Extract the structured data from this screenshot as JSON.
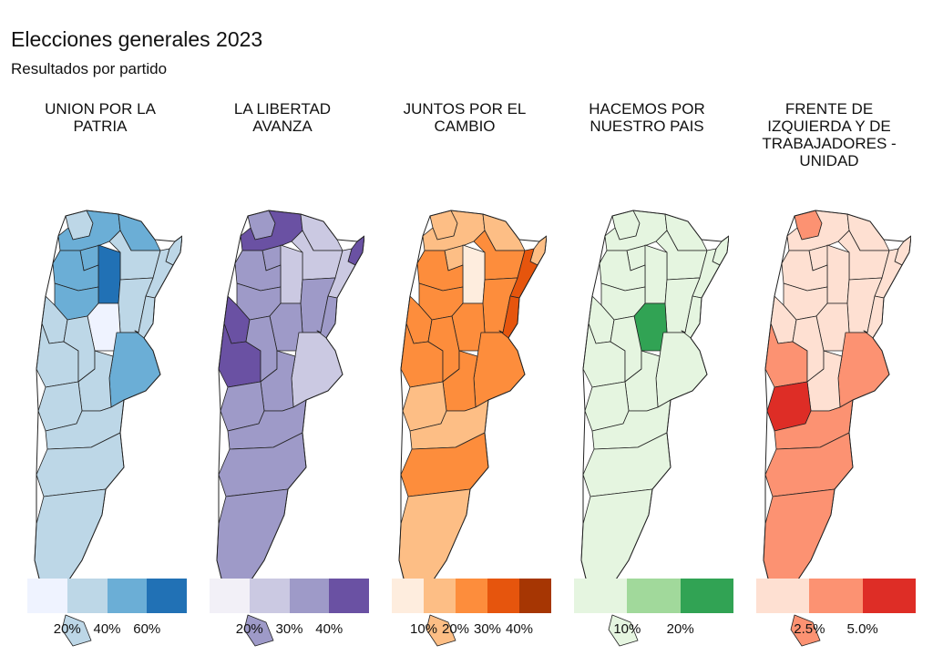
{
  "title": "Elecciones generales 2023",
  "subtitle": "Resultados por partido",
  "panels": [
    {
      "party": "UNION POR LA PATRIA",
      "title_lines": [
        "UNION POR LA",
        "PATRIA"
      ],
      "legend_colors": [
        "#eff3ff",
        "#bdd7e7",
        "#6baed6",
        "#2171b5"
      ],
      "tick_labels": [
        "20%",
        "40%",
        "60%"
      ],
      "colors": {
        "jujuy": "#bdd7e7",
        "salta": "#6baed6",
        "formosa": "#6baed6",
        "chaco": "#bdd7e7",
        "misiones": "#bdd7e7",
        "corrientes": "#bdd7e7",
        "tucuman": "#6baed6",
        "sgo_estero": "#2171b5",
        "catamarca": "#6baed6",
        "la_rioja": "#6baed6",
        "santa_fe": "#bdd7e7",
        "entre_rios": "#bdd7e7",
        "san_juan": "#bdd7e7",
        "cordoba": "#eff3ff",
        "mendoza": "#bdd7e7",
        "san_luis": "#bdd7e7",
        "buenos_aires": "#6baed6",
        "la_pampa": "#bdd7e7",
        "neuquen": "#bdd7e7",
        "rio_negro": "#bdd7e7",
        "chubut": "#bdd7e7",
        "santa_cruz": "#bdd7e7",
        "tierra_del_fuego": "#bdd7e7",
        "malvinas": "#bdd7e7"
      }
    },
    {
      "party": "LA LIBERTAD AVANZA",
      "title_lines": [
        "LA LIBERTAD",
        "AVANZA"
      ],
      "legend_colors": [
        "#f2f0f7",
        "#cbc9e2",
        "#9e9ac8",
        "#6a51a3"
      ],
      "tick_labels": [
        "20%",
        "30%",
        "40%"
      ],
      "colors": {
        "jujuy": "#9e9ac8",
        "salta": "#6a51a3",
        "formosa": "#cbc9e2",
        "chaco": "#cbc9e2",
        "misiones": "#6a51a3",
        "corrientes": "#cbc9e2",
        "tucuman": "#9e9ac8",
        "sgo_estero": "#cbc9e2",
        "catamarca": "#9e9ac8",
        "la_rioja": "#9e9ac8",
        "santa_fe": "#9e9ac8",
        "entre_rios": "#9e9ac8",
        "san_juan": "#6a51a3",
        "cordoba": "#9e9ac8",
        "mendoza": "#6a51a3",
        "san_luis": "#9e9ac8",
        "buenos_aires": "#cbc9e2",
        "la_pampa": "#9e9ac8",
        "neuquen": "#9e9ac8",
        "rio_negro": "#9e9ac8",
        "chubut": "#9e9ac8",
        "santa_cruz": "#9e9ac8",
        "tierra_del_fuego": "#9e9ac8",
        "malvinas": "#9e9ac8"
      }
    },
    {
      "party": "JUNTOS POR EL CAMBIO",
      "title_lines": [
        "JUNTOS POR EL",
        "CAMBIO"
      ],
      "legend_colors": [
        "#feedde",
        "#fdbe85",
        "#fd8d3c",
        "#e6550d",
        "#a63603"
      ],
      "tick_labels": [
        "10%",
        "20%",
        "30%",
        "40%"
      ],
      "colors": {
        "jujuy": "#fdbe85",
        "salta": "#fdbe85",
        "formosa": "#fdbe85",
        "chaco": "#fd8d3c",
        "misiones": "#fdbe85",
        "corrientes": "#e6550d",
        "tucuman": "#fdbe85",
        "sgo_estero": "#feedde",
        "catamarca": "#fd8d3c",
        "la_rioja": "#fd8d3c",
        "santa_fe": "#fd8d3c",
        "entre_rios": "#e6550d",
        "san_juan": "#fd8d3c",
        "cordoba": "#fd8d3c",
        "mendoza": "#fd8d3c",
        "san_luis": "#fd8d3c",
        "buenos_aires": "#fd8d3c",
        "la_pampa": "#fd8d3c",
        "neuquen": "#fdbe85",
        "rio_negro": "#fdbe85",
        "chubut": "#fd8d3c",
        "santa_cruz": "#fdbe85",
        "tierra_del_fuego": "#fdbe85",
        "malvinas": "#fdbe85"
      }
    },
    {
      "party": "HACEMOS POR NUESTRO PAIS",
      "title_lines": [
        "HACEMOS POR",
        "NUESTRO PAIS"
      ],
      "legend_colors": [
        "#e5f5e0",
        "#a1d99b",
        "#31a354"
      ],
      "tick_labels": [
        "10%",
        "20%"
      ],
      "colors": {
        "jujuy": "#e5f5e0",
        "salta": "#e5f5e0",
        "formosa": "#e5f5e0",
        "chaco": "#e5f5e0",
        "misiones": "#e5f5e0",
        "corrientes": "#e5f5e0",
        "tucuman": "#e5f5e0",
        "sgo_estero": "#e5f5e0",
        "catamarca": "#e5f5e0",
        "la_rioja": "#e5f5e0",
        "santa_fe": "#e5f5e0",
        "entre_rios": "#e5f5e0",
        "san_juan": "#e5f5e0",
        "cordoba": "#31a354",
        "mendoza": "#e5f5e0",
        "san_luis": "#e5f5e0",
        "buenos_aires": "#e5f5e0",
        "la_pampa": "#e5f5e0",
        "neuquen": "#e5f5e0",
        "rio_negro": "#e5f5e0",
        "chubut": "#e5f5e0",
        "santa_cruz": "#e5f5e0",
        "tierra_del_fuego": "#e5f5e0",
        "malvinas": "#e5f5e0"
      }
    },
    {
      "party": "FRENTE DE IZQUIERDA Y DE TRABAJADORES - UNIDAD",
      "title_lines": [
        "FRENTE DE",
        "IZQUIERDA Y DE",
        "TRABAJADORES -",
        "UNIDAD"
      ],
      "legend_colors": [
        "#fee0d2",
        "#fc9272",
        "#de2d26"
      ],
      "tick_labels": [
        "2.5%",
        "5.0%"
      ],
      "colors": {
        "jujuy": "#fc9272",
        "salta": "#fee0d2",
        "formosa": "#fee0d2",
        "chaco": "#fee0d2",
        "misiones": "#fee0d2",
        "corrientes": "#fee0d2",
        "tucuman": "#fee0d2",
        "sgo_estero": "#fee0d2",
        "catamarca": "#fee0d2",
        "la_rioja": "#fee0d2",
        "santa_fe": "#fee0d2",
        "entre_rios": "#fee0d2",
        "san_juan": "#fee0d2",
        "cordoba": "#fee0d2",
        "mendoza": "#fc9272",
        "san_luis": "#fee0d2",
        "buenos_aires": "#fc9272",
        "la_pampa": "#fee0d2",
        "neuquen": "#de2d26",
        "rio_negro": "#fc9272",
        "chubut": "#fc9272",
        "santa_cruz": "#fc9272",
        "tierra_del_fuego": "#fc9272",
        "malvinas": "#fc9272"
      }
    }
  ]
}
